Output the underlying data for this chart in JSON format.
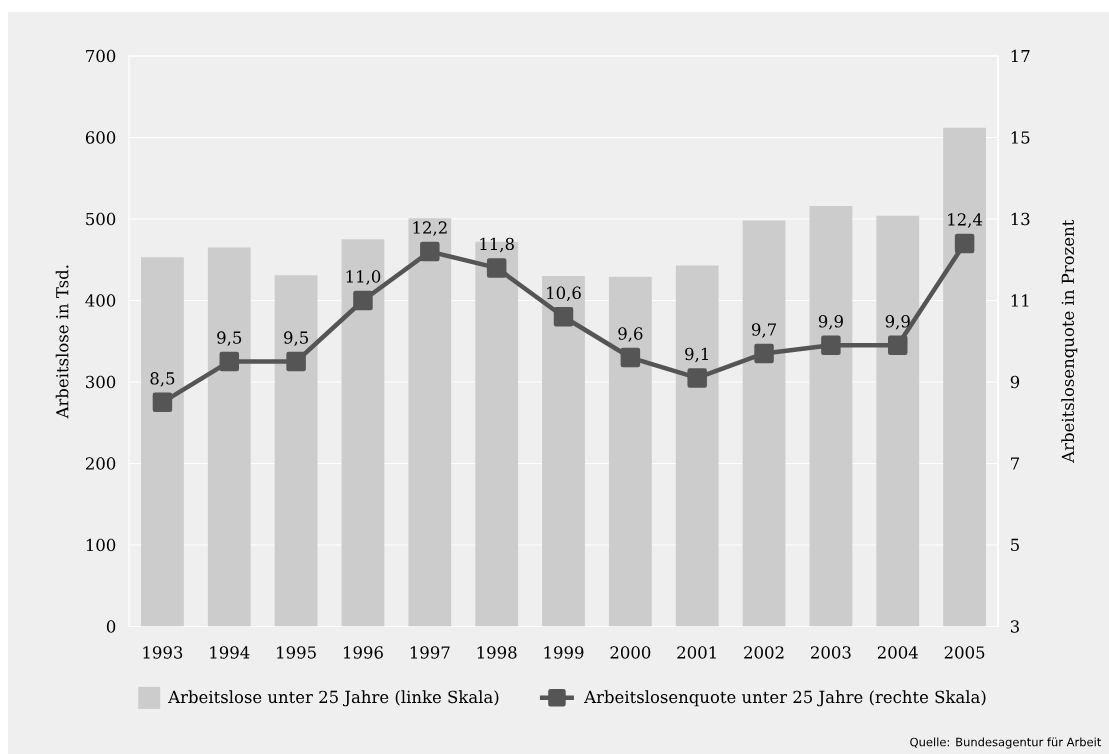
{
  "chart_data": {
    "type": "bar",
    "categories": [
      "1993",
      "1994",
      "1995",
      "1996",
      "1997",
      "1998",
      "1999",
      "2000",
      "2001",
      "2002",
      "2003",
      "2004",
      "2005"
    ],
    "ylabel": "Arbeitslose in Tsd.",
    "y2label": "Arbeitslosenquote in Prozent",
    "ylim": [
      0,
      700
    ],
    "yticks": [
      0,
      100,
      200,
      300,
      400,
      500,
      600,
      700
    ],
    "y2lim": [
      3,
      17
    ],
    "y2ticks": [
      3,
      5,
      7,
      9,
      11,
      13,
      15,
      17
    ],
    "series": [
      {
        "name": "Arbeitslose unter 25 Jahre (linke Skala)",
        "color": "#cccccc",
        "values": [
          453,
          465,
          431,
          475,
          501,
          472,
          430,
          429,
          443,
          498,
          516,
          504,
          612
        ]
      },
      {
        "name": "Arbeitslosenquote unter 25 Jahre (rechte Skala)",
        "type": "line",
        "axis": "y2",
        "color": "#555555",
        "marker": "square",
        "values": [
          8.5,
          9.5,
          9.5,
          11.0,
          12.2,
          11.8,
          10.6,
          9.6,
          9.1,
          9.7,
          9.9,
          9.9,
          12.4
        ],
        "value_labels": [
          "8,5",
          "9,5",
          "9,5",
          "11,0",
          "12,2",
          "11,8",
          "10,6",
          "9,6",
          "9,1",
          "9,7",
          "9,9",
          "9,9",
          "12,4"
        ]
      }
    ],
    "grid": "y",
    "legend": "bottom",
    "annotations": [
      "Quelle: Bundesagentur für Arbeit"
    ]
  }
}
